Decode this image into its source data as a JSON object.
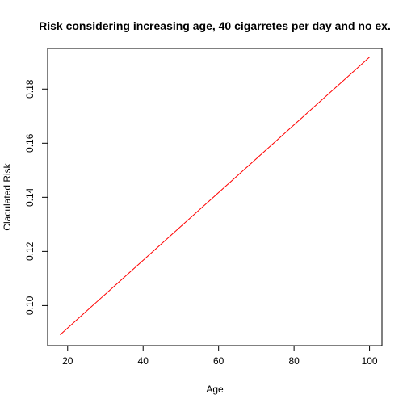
{
  "chart_data": {
    "type": "line",
    "title": "Risk considering increasing age, 40 cigarretes per day and no ex.",
    "xlabel": "Age",
    "ylabel": "Claculated Risk",
    "xlim": [
      14.7,
      103.3
    ],
    "ylim": [
      0.0852,
      0.195
    ],
    "x_ticks": [
      20,
      40,
      60,
      80,
      100
    ],
    "y_ticks": [
      0.1,
      0.12,
      0.14,
      0.16,
      0.18
    ],
    "x_tick_labels": [
      "20",
      "40",
      "60",
      "80",
      "100"
    ],
    "y_tick_labels": [
      "0.10",
      "0.12",
      "0.14",
      "0.16",
      "0.18"
    ],
    "grid": false,
    "legend": "none",
    "series": [
      {
        "color": "#ff0000",
        "x": [
          18,
          100
        ],
        "y": [
          0.0892,
          0.1918
        ]
      }
    ]
  }
}
